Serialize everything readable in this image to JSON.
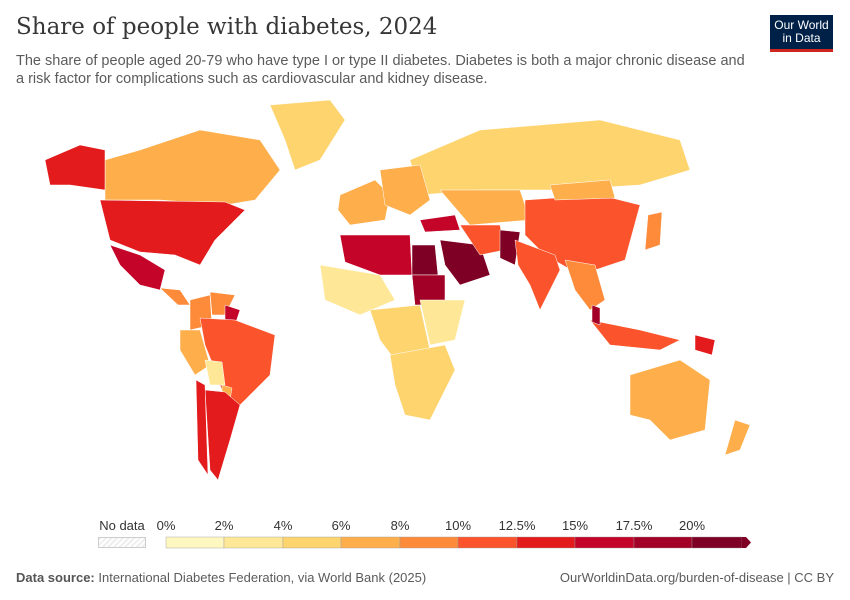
{
  "header": {
    "title": "Share of people with diabetes, 2024",
    "subtitle": "The share of people aged 20-79 who have type I or type II diabetes. Diabetes is both a major chronic disease and a risk factor for complications such as cardiovascular and kidney disease.",
    "logo": "Our World in Data"
  },
  "legend": {
    "no_data_label": "No data",
    "ticks": [
      "0%",
      "2%",
      "4%",
      "6%",
      "8%",
      "10%",
      "12.5%",
      "15%",
      "17.5%",
      "20%"
    ],
    "bin_colors": [
      "#fff7c0",
      "#fee897",
      "#fed46f",
      "#feae4a",
      "#fd8b3a",
      "#fb542c",
      "#e31b1c",
      "#c40428",
      "#a20026",
      "#7e0025"
    ]
  },
  "footer": {
    "source_label": "Data source:",
    "source": "International Diabetes Federation, via World Bank (2025)",
    "link": "OurWorldinData.org/burden-of-disease | CC BY"
  },
  "map_regions": [
    {
      "name": "Greenland",
      "bin": 2
    },
    {
      "name": "Canada",
      "bin": 3
    },
    {
      "name": "Alaska",
      "bin": 6
    },
    {
      "name": "United States",
      "bin": 6
    },
    {
      "name": "Mexico",
      "bin": 7
    },
    {
      "name": "Central America",
      "bin": 4
    },
    {
      "name": "Colombia",
      "bin": 4
    },
    {
      "name": "Venezuela",
      "bin": 4
    },
    {
      "name": "Guyana",
      "bin": 7
    },
    {
      "name": "Peru",
      "bin": 3
    },
    {
      "name": "Brazil",
      "bin": 5
    },
    {
      "name": "Bolivia",
      "bin": 1
    },
    {
      "name": "Paraguay",
      "bin": 3
    },
    {
      "name": "Argentina",
      "bin": 6
    },
    {
      "name": "Chile",
      "bin": 6
    },
    {
      "name": "Russia",
      "bin": 2
    },
    {
      "name": "Western Europe",
      "bin": 3
    },
    {
      "name": "Eastern Europe",
      "bin": 3
    },
    {
      "name": "Turkey",
      "bin": 7
    },
    {
      "name": "North Africa",
      "bin": 7
    },
    {
      "name": "Egypt",
      "bin": 9
    },
    {
      "name": "Sudan",
      "bin": 8
    },
    {
      "name": "West Africa",
      "bin": 1
    },
    {
      "name": "Central Africa",
      "bin": 2
    },
    {
      "name": "East Africa",
      "bin": 1
    },
    {
      "name": "Southern Africa",
      "bin": 2
    },
    {
      "name": "Saudi Arabia",
      "bin": 9
    },
    {
      "name": "Iran",
      "bin": 5
    },
    {
      "name": "Pakistan",
      "bin": 9
    },
    {
      "name": "Central Asia",
      "bin": 3
    },
    {
      "name": "China",
      "bin": 5
    },
    {
      "name": "Mongolia",
      "bin": 3
    },
    {
      "name": "India",
      "bin": 5
    },
    {
      "name": "Southeast Asia",
      "bin": 4
    },
    {
      "name": "Japan",
      "bin": 4
    },
    {
      "name": "Indonesia",
      "bin": 5
    },
    {
      "name": "Malaysia",
      "bin": 8
    },
    {
      "name": "Papua New Guinea",
      "bin": 6
    },
    {
      "name": "Australia",
      "bin": 3
    },
    {
      "name": "New Zealand",
      "bin": 3
    }
  ]
}
